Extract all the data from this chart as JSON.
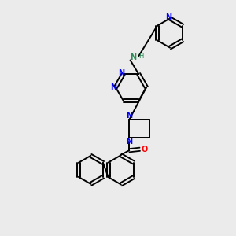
{
  "background_color": "#ebebeb",
  "bond_color": "#000000",
  "nitrogen_color": "#0000ff",
  "oxygen_color": "#ff0000",
  "nh_color": "#2e8b57",
  "figsize": [
    3.0,
    3.0
  ],
  "dpi": 100,
  "xlim": [
    0,
    10
  ],
  "ylim": [
    0,
    10
  ]
}
